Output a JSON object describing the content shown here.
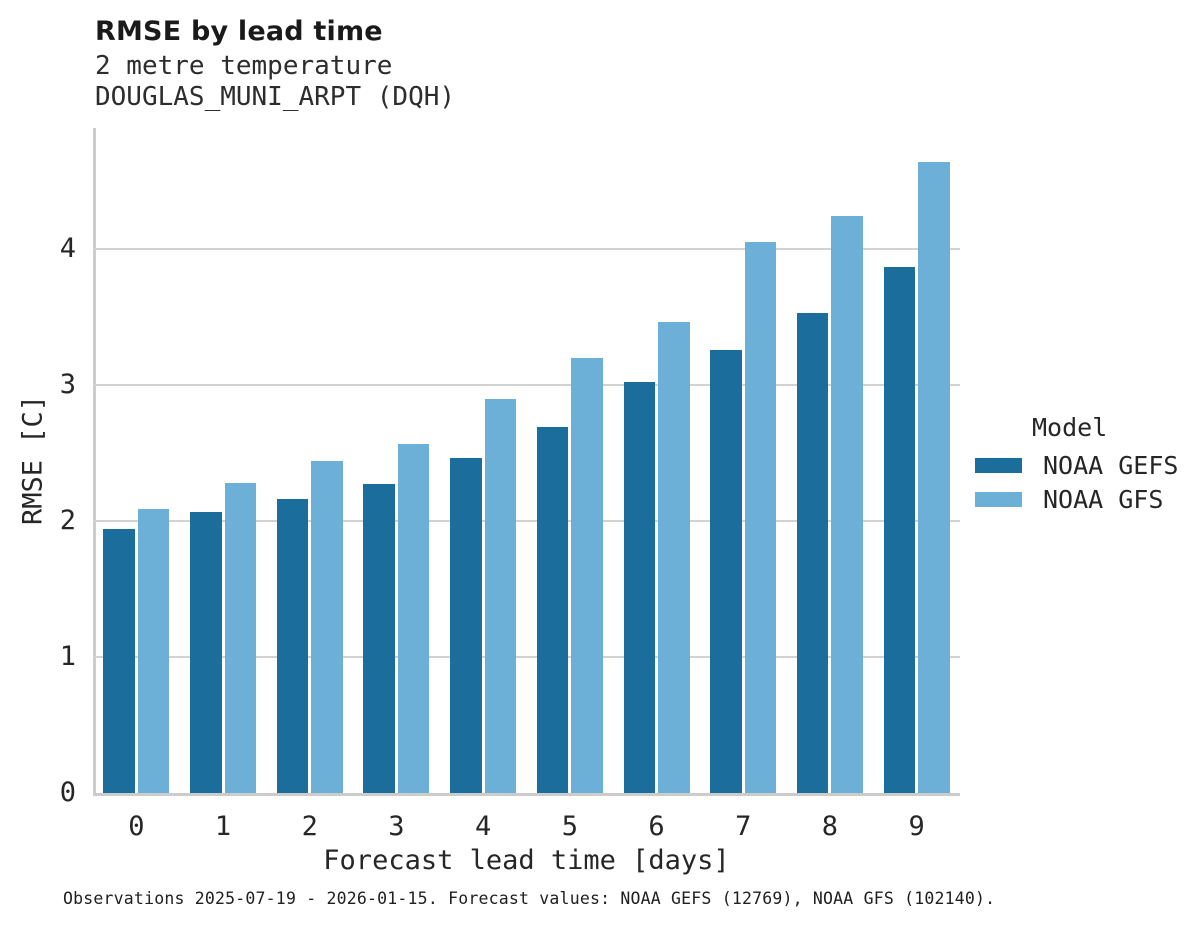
{
  "header": {
    "title": "RMSE by lead time",
    "subtitle_lines": [
      "2 metre temperature",
      "DOUGLAS_MUNI_ARPT (DQH)"
    ]
  },
  "caption": "Observations 2025-07-19 - 2026-01-15. Forecast values: NOAA GEFS (12769), NOAA GFS (102140).",
  "chart_data": {
    "type": "bar",
    "title": "RMSE by lead time",
    "subtitle": [
      "2 metre temperature",
      "DOUGLAS_MUNI_ARPT (DQH)"
    ],
    "categories": [
      0,
      1,
      2,
      3,
      4,
      5,
      6,
      7,
      8,
      9
    ],
    "series": [
      {
        "name": "NOAA GEFS",
        "color": "#1b6d9c",
        "values": [
          1.94,
          2.07,
          2.16,
          2.27,
          2.46,
          2.69,
          3.02,
          3.26,
          3.53,
          3.87
        ]
      },
      {
        "name": "NOAA GFS",
        "color": "#6cb0d8",
        "values": [
          2.09,
          2.28,
          2.44,
          2.57,
          2.9,
          3.2,
          3.46,
          4.05,
          4.24,
          4.64
        ]
      }
    ],
    "xlabel": "Forecast lead time [days]",
    "ylabel": "RMSE [C]",
    "ylim": [
      0,
      4.89
    ],
    "yticks": [
      0,
      1,
      2,
      3,
      4
    ],
    "grid": "horizontal",
    "legend_title": "Model",
    "legend_position": "right"
  }
}
